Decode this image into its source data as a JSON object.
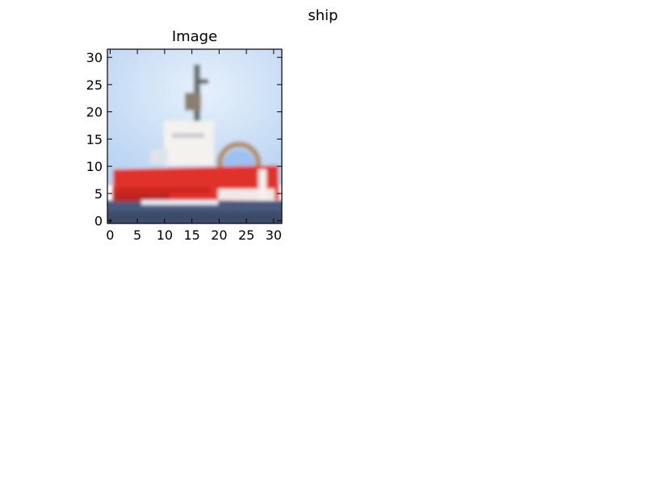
{
  "figure": {
    "suptitle": "ship"
  },
  "axes": {
    "title": "Image",
    "xticks": [
      "0",
      "5",
      "10",
      "15",
      "20",
      "25",
      "30"
    ],
    "yticks": [
      "0",
      "5",
      "10",
      "15",
      "20",
      "25",
      "30"
    ],
    "xlim": [
      -0.5,
      31.5
    ],
    "ylim": [
      31.5,
      -0.5
    ]
  },
  "image": {
    "content": "32x32 thumbnail of a red and white ship on dark water under a pale blue sky",
    "colors": {
      "sky": "#c6dcf5",
      "hull": "#e0302b",
      "superstructure": "#f4f2ef",
      "water": "#4a5a7e",
      "mast": "#5e6468"
    }
  }
}
